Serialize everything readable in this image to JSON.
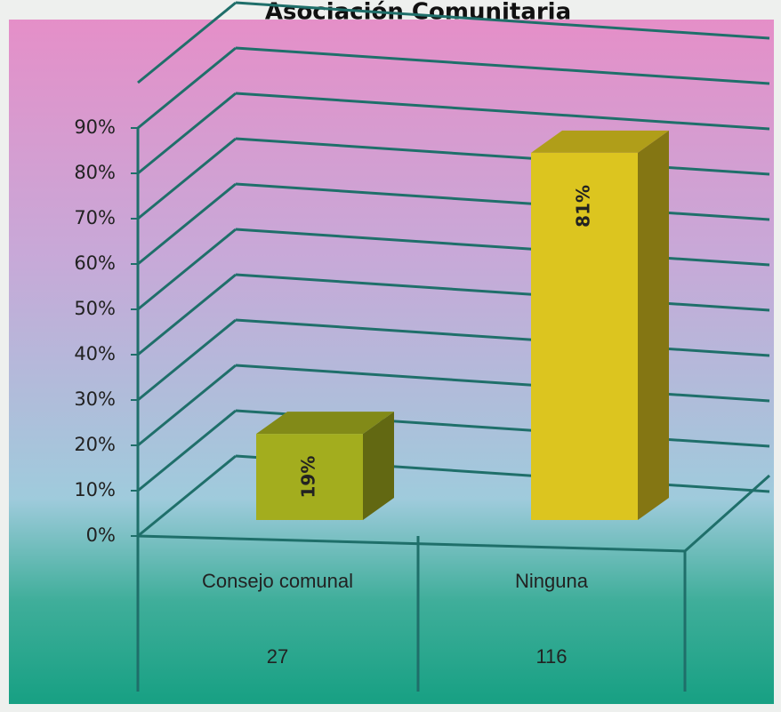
{
  "chart_data": {
    "type": "bar3d",
    "title": "Asociación Comunitaria",
    "categories": [
      "Consejo comunal",
      "Ninguna"
    ],
    "values": [
      19,
      81
    ],
    "value_labels": [
      "19%",
      "81%"
    ],
    "colors": [
      "#a3ad1e",
      "#dcc51f"
    ],
    "table_values": [
      27,
      116
    ],
    "ylim": [
      0,
      100
    ],
    "yticks": [
      {
        "value": 0,
        "label": "0%"
      },
      {
        "value": 10,
        "label": "10%"
      },
      {
        "value": 20,
        "label": "20%"
      },
      {
        "value": 30,
        "label": "30%"
      },
      {
        "value": 40,
        "label": "40%"
      },
      {
        "value": 50,
        "label": "50%"
      },
      {
        "value": 60,
        "label": "60%"
      },
      {
        "value": 70,
        "label": "70%"
      },
      {
        "value": 80,
        "label": "80%"
      },
      {
        "value": 90,
        "label": "90%"
      }
    ],
    "grid": true
  }
}
